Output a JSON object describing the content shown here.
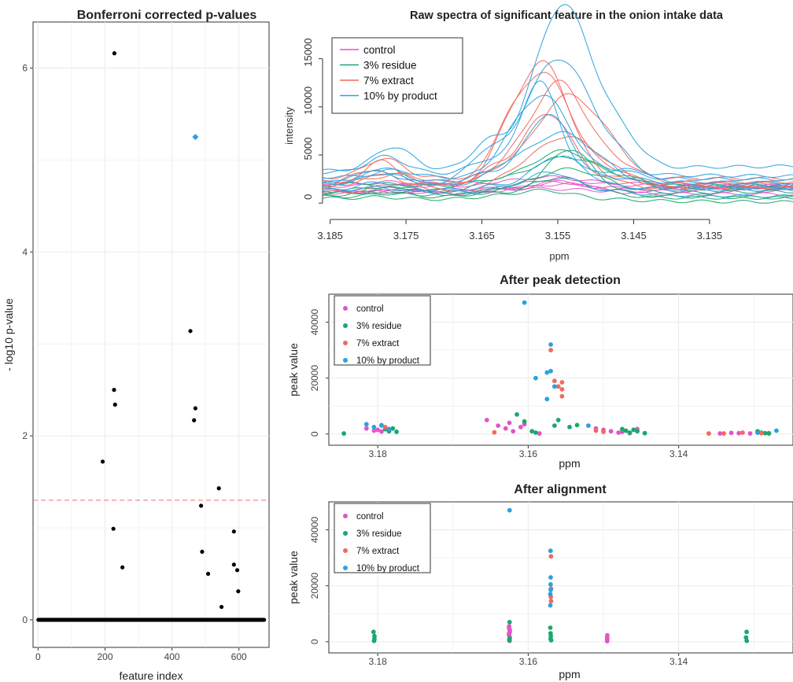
{
  "colors": {
    "control": "#e056c7",
    "residue": "#1aa86e",
    "extract": "#f06a5f",
    "byproduct": "#2aa2e0",
    "grid": "#ebebeb",
    "threshold": "#f08080"
  },
  "chart_data": [
    {
      "type": "scatter",
      "title": "Bonferroni corrected p-values",
      "xlabel": "feature index",
      "ylabel": "- log10 p-value",
      "xlim": [
        -15,
        690
      ],
      "ylim": [
        -0.3,
        6.5
      ],
      "xticks": [
        0,
        200,
        400,
        600
      ],
      "yticks": [
        0,
        2,
        4,
        6
      ],
      "grid": true,
      "threshold_y": 1.3,
      "baseline_range": [
        1,
        675
      ],
      "points": [
        [
          193,
          1.72
        ],
        [
          225,
          0.99
        ],
        [
          227,
          2.5
        ],
        [
          228,
          6.16
        ],
        [
          230,
          2.34
        ],
        [
          252,
          0.57
        ],
        [
          455,
          3.14
        ],
        [
          466,
          2.17
        ],
        [
          470,
          2.3
        ],
        [
          487,
          1.24
        ],
        [
          490,
          0.74
        ],
        [
          508,
          0.5
        ],
        [
          540,
          1.43
        ],
        [
          548,
          0.14
        ],
        [
          585,
          0.96
        ],
        [
          585,
          0.6
        ],
        [
          595,
          0.54
        ],
        [
          598,
          0.31
        ]
      ],
      "highlight": {
        "x": 470,
        "y": 5.25,
        "color": "#2aa2e0"
      }
    },
    {
      "type": "line",
      "title": "Raw spectra of significant feature in the onion intake data",
      "xlabel": "ppm",
      "ylabel": "intensity",
      "xlim": [
        3.186,
        3.124
      ],
      "ylim": [
        -800,
        17500
      ],
      "xticks": [
        "3.185",
        "3.175",
        "3.165",
        "3.155",
        "3.145",
        "3.135"
      ],
      "yticks": [
        0,
        5000,
        10000,
        15000
      ],
      "legend": {
        "position": "top-left",
        "entries": [
          "control",
          "3% residue",
          "7% extract",
          "10% by product"
        ]
      },
      "series": [
        {
          "name": "control",
          "peaks": [
            300,
            500,
            800,
            1200,
            700,
            900
          ],
          "bases": [
            1200,
            1500,
            1800,
            1000,
            2000,
            1300
          ]
        },
        {
          "name": "3% residue",
          "peaks": [
            1000,
            2000,
            2500,
            4000,
            3000,
            4800
          ],
          "bases": [
            300,
            600,
            1000,
            1400,
            1800,
            800
          ]
        },
        {
          "name": "7% extract",
          "peaks": [
            5500,
            7500,
            9000,
            10000,
            11500,
            13000
          ],
          "bases": [
            1400,
            1800,
            2200,
            2600,
            2000,
            1600
          ]
        },
        {
          "name": "10% by product",
          "peaks": [
            2200,
            3500,
            5500,
            7000,
            8500,
            9600,
            13000,
            17000
          ],
          "bases": [
            1000,
            1400,
            1800,
            2200,
            2600,
            3000,
            2000,
            3600
          ]
        }
      ]
    },
    {
      "type": "scatter",
      "title": "After peak detection",
      "xlabel": "ppm",
      "ylabel": "peak value",
      "xlim": [
        3.1865,
        3.1248
      ],
      "ylim": [
        -4000,
        50000
      ],
      "xticks": [
        "3.18",
        "3.16",
        "3.14"
      ],
      "yticks": [
        "0",
        "20000",
        "40000"
      ],
      "grid": true,
      "legend": {
        "position": "top-left",
        "entries": [
          "control",
          "3% residue",
          "7% extract",
          "10% by product"
        ]
      },
      "series": [
        {
          "name": "control",
          "points": [
            [
              3.1815,
              2000
            ],
            [
              3.1805,
              1200
            ],
            [
              3.18,
              1500
            ],
            [
              3.1795,
              900
            ],
            [
              3.179,
              1700
            ],
            [
              3.1785,
              1000
            ],
            [
              3.1655,
              5000
            ],
            [
              3.164,
              3000
            ],
            [
              3.163,
              2000
            ],
            [
              3.1625,
              4000
            ],
            [
              3.162,
              1000
            ],
            [
              3.161,
              2500
            ],
            [
              3.1605,
              3500
            ],
            [
              3.1585,
              200
            ],
            [
              3.151,
              2000
            ],
            [
              3.15,
              1500
            ],
            [
              3.149,
              1000
            ],
            [
              3.148,
              500
            ],
            [
              3.1475,
              800
            ],
            [
              3.1465,
              300
            ],
            [
              3.1455,
              1800
            ],
            [
              3.1345,
              200
            ],
            [
              3.133,
              400
            ],
            [
              3.132,
              300
            ],
            [
              3.1305,
              200
            ],
            [
              3.1295,
              500
            ],
            [
              3.128,
              300
            ]
          ]
        },
        {
          "name": "3% residue",
          "points": [
            [
              3.1845,
              200
            ],
            [
              3.179,
              1800
            ],
            [
              3.1785,
              1000
            ],
            [
              3.178,
              2000
            ],
            [
              3.1775,
              800
            ],
            [
              3.1615,
              7000
            ],
            [
              3.1605,
              4500
            ],
            [
              3.1595,
              1000
            ],
            [
              3.159,
              500
            ],
            [
              3.1565,
              3000
            ],
            [
              3.156,
              5000
            ],
            [
              3.1545,
              2500
            ],
            [
              3.1535,
              3200
            ],
            [
              3.1475,
              1800
            ],
            [
              3.147,
              1200
            ],
            [
              3.1465,
              500
            ],
            [
              3.146,
              1500
            ],
            [
              3.1455,
              1000
            ],
            [
              3.1445,
              300
            ],
            [
              3.1295,
              1000
            ],
            [
              3.129,
              500
            ],
            [
              3.1285,
              300
            ],
            [
              3.128,
              200
            ]
          ]
        },
        {
          "name": "7% extract",
          "points": [
            [
              3.1795,
              3000
            ],
            [
              3.179,
              2500
            ],
            [
              3.1645,
              600
            ],
            [
              3.157,
              30000
            ],
            [
              3.1565,
              19000
            ],
            [
              3.156,
              17000
            ],
            [
              3.1555,
              18500
            ],
            [
              3.1555,
              16000
            ],
            [
              3.1555,
              13500
            ],
            [
              3.151,
              1200
            ],
            [
              3.15,
              800
            ],
            [
              3.136,
              200
            ],
            [
              3.134,
              200
            ],
            [
              3.1315,
              500
            ],
            [
              3.129,
              300
            ]
          ]
        },
        {
          "name": "10% by product",
          "points": [
            [
              3.1815,
              3500
            ],
            [
              3.1805,
              2500
            ],
            [
              3.1795,
              3200
            ],
            [
              3.1785,
              1800
            ],
            [
              3.1605,
              47000
            ],
            [
              3.159,
              20000
            ],
            [
              3.1575,
              22000
            ],
            [
              3.157,
              22500
            ],
            [
              3.1565,
              17000
            ],
            [
              3.157,
              32000
            ],
            [
              3.1575,
              12500
            ],
            [
              3.152,
              3000
            ],
            [
              3.1295,
              500
            ],
            [
              3.127,
              1200
            ]
          ]
        }
      ]
    },
    {
      "type": "scatter",
      "title": "After alignment",
      "xlabel": "ppm",
      "ylabel": "peak value",
      "xlim": [
        3.1865,
        3.1248
      ],
      "ylim": [
        -4000,
        50000
      ],
      "xticks": [
        "3.18",
        "3.16",
        "3.14"
      ],
      "yticks": [
        "0",
        "20000",
        "40000"
      ],
      "grid": true,
      "legend": {
        "position": "top-left",
        "entries": [
          "control",
          "3% residue",
          "7% extract",
          "10% by product"
        ]
      },
      "series": [
        {
          "name": "control",
          "x": 3.1625,
          "values": [
            5500,
            4800,
            4200,
            3500,
            2800,
            2200,
            1500,
            800,
            300
          ]
        },
        {
          "name": "control",
          "x": 3.1495,
          "values": [
            2300,
            1500,
            800,
            200
          ]
        },
        {
          "name": "3% residue",
          "x": 3.1805,
          "values": [
            3500,
            2000,
            1000,
            300
          ]
        },
        {
          "name": "3% residue",
          "x": 3.1625,
          "values": [
            7000,
            500,
            1200
          ]
        },
        {
          "name": "3% residue",
          "x": 3.157,
          "values": [
            5000,
            3000,
            2000,
            1000,
            500
          ]
        },
        {
          "name": "3% residue",
          "x": 3.131,
          "values": [
            3500,
            1500,
            300
          ]
        },
        {
          "name": "7% extract",
          "x": 3.157,
          "values": [
            30500,
            19000,
            16000,
            14500
          ]
        },
        {
          "name": "10% by product",
          "x": 3.1625,
          "values": [
            47000
          ]
        },
        {
          "name": "10% by product",
          "x": 3.157,
          "values": [
            32500,
            23000,
            20500,
            18500,
            17000,
            13000
          ]
        }
      ]
    }
  ]
}
